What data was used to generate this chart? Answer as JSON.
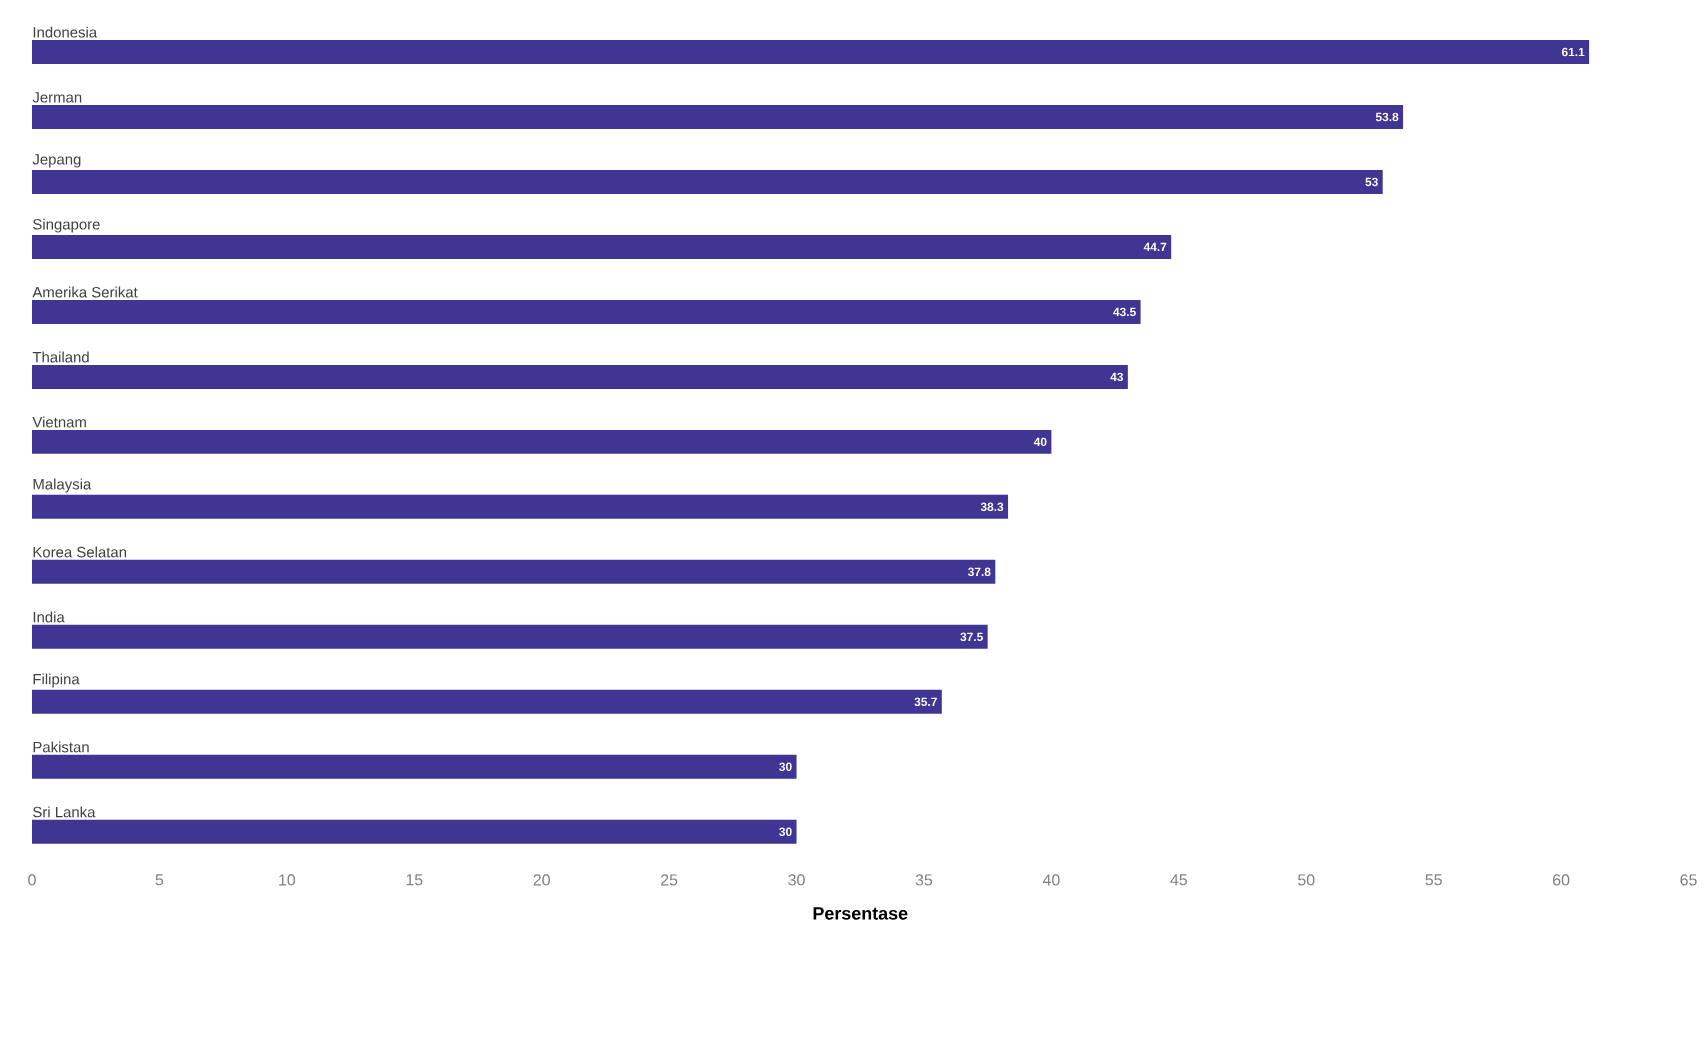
{
  "chart_data": {
    "type": "bar",
    "orientation": "horizontal",
    "xlabel": "Persentase",
    "categories": [
      "Indonesia",
      "Jerman",
      "Jepang",
      "Singapore",
      "Amerika Serikat",
      "Thailand",
      "Vietnam",
      "Malaysia",
      "Korea Selatan",
      "India",
      "Filipina",
      "Pakistan",
      "Sri Lanka"
    ],
    "values": [
      61.1,
      53.8,
      53,
      44.7,
      43.5,
      43,
      40,
      38.3,
      37.8,
      37.5,
      35.7,
      30,
      30
    ],
    "color": "#3f3592",
    "data_labels": true,
    "xlim": [
      0,
      65
    ],
    "xticks": [
      0,
      5,
      10,
      15,
      20,
      25,
      30,
      35,
      40,
      45,
      50,
      55,
      60,
      65
    ]
  }
}
